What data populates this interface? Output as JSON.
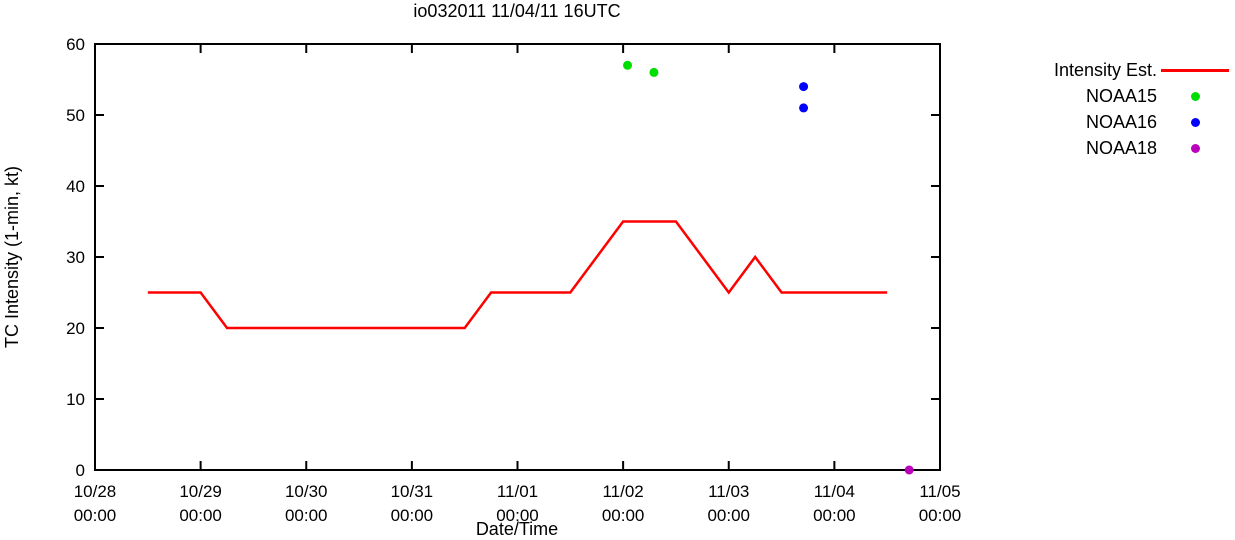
{
  "chart_data": {
    "type": "line",
    "title": "io032011 11/04/11 16UTC",
    "xlabel": "Date/Time",
    "ylabel": "TC Intensity (1-min, kt)",
    "ylim": [
      0,
      60
    ],
    "yticks": [
      0,
      10,
      20,
      30,
      40,
      50,
      60
    ],
    "xlim_hours": [
      0,
      192
    ],
    "xticks": [
      {
        "hours": 0,
        "date": "10/28",
        "time": "00:00"
      },
      {
        "hours": 24,
        "date": "10/29",
        "time": "00:00"
      },
      {
        "hours": 48,
        "date": "10/30",
        "time": "00:00"
      },
      {
        "hours": 72,
        "date": "10/31",
        "time": "00:00"
      },
      {
        "hours": 96,
        "date": "11/01",
        "time": "00:00"
      },
      {
        "hours": 120,
        "date": "11/02",
        "time": "00:00"
      },
      {
        "hours": 144,
        "date": "11/03",
        "time": "00:00"
      },
      {
        "hours": 168,
        "date": "11/04",
        "time": "00:00"
      },
      {
        "hours": 192,
        "date": "11/05",
        "time": "00:00"
      }
    ],
    "grid": false,
    "legend_position": "outside-top-right",
    "series": [
      {
        "name": "Intensity Est.",
        "kind": "line",
        "color": "#ff0000",
        "points": [
          [
            12,
            25
          ],
          [
            24,
            25
          ],
          [
            30,
            20
          ],
          [
            84,
            20
          ],
          [
            90,
            25
          ],
          [
            108,
            25
          ],
          [
            120,
            35
          ],
          [
            132,
            35
          ],
          [
            144,
            25
          ],
          [
            150,
            30
          ],
          [
            156,
            25
          ],
          [
            180,
            25
          ]
        ]
      },
      {
        "name": "NOAA15",
        "kind": "scatter",
        "color": "#00dd00",
        "points": [
          [
            121,
            57
          ],
          [
            127,
            56
          ]
        ]
      },
      {
        "name": "NOAA16",
        "kind": "scatter",
        "color": "#0000ff",
        "points": [
          [
            161,
            54
          ],
          [
            161,
            51
          ]
        ]
      },
      {
        "name": "NOAA18",
        "kind": "scatter",
        "color": "#bb00bb",
        "points": [
          [
            185,
            0
          ]
        ]
      }
    ]
  }
}
